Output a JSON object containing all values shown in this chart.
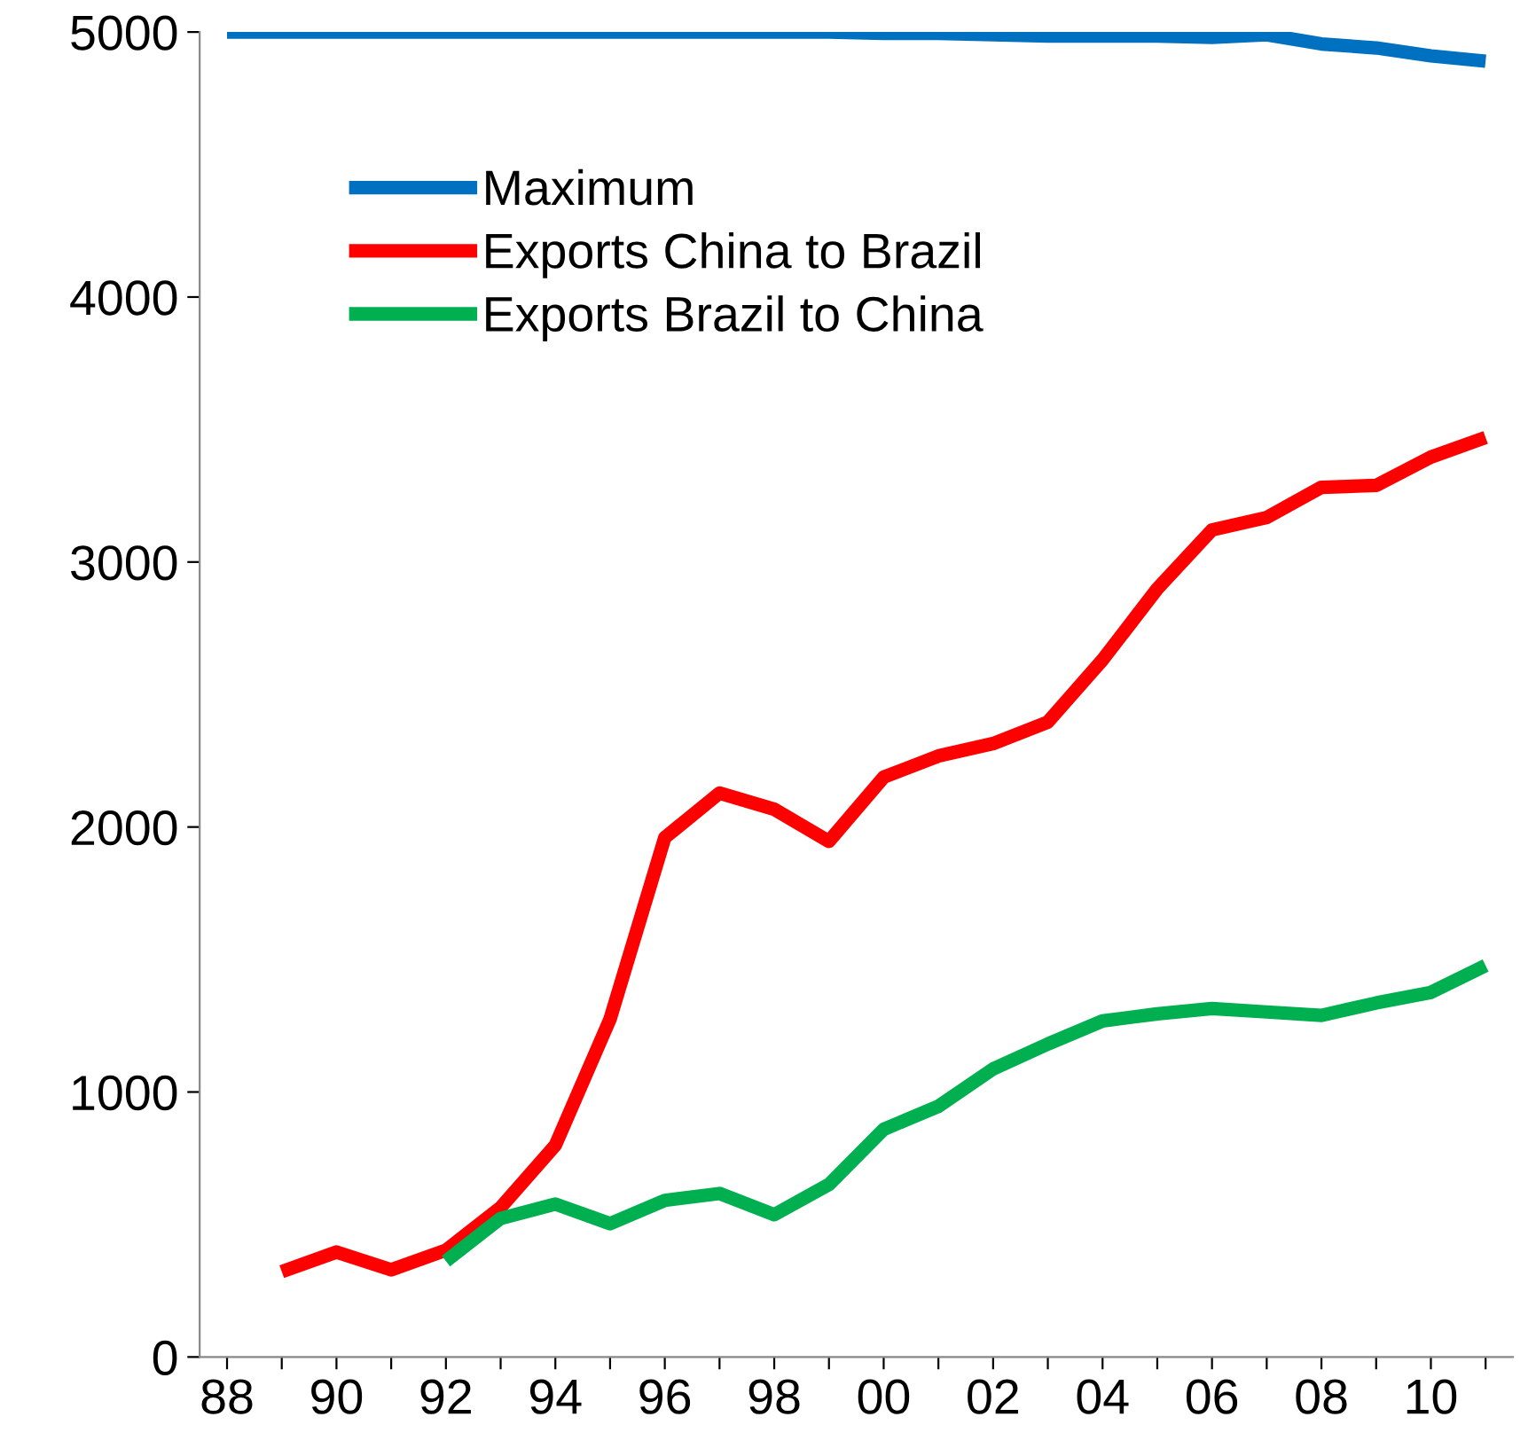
{
  "chart_data": {
    "type": "line",
    "categories": [
      "88",
      null,
      "90",
      null,
      "92",
      null,
      "94",
      null,
      "96",
      null,
      "98",
      null,
      "00",
      null,
      "02",
      null,
      "04",
      null,
      "06",
      null,
      "08",
      null,
      "10",
      null
    ],
    "series": [
      {
        "name": "Maximum",
        "color": "#0070c0",
        "values": [
          5000,
          5000,
          5000,
          5000,
          5000,
          5000,
          5000,
          5000,
          5000,
          5000,
          5000,
          5000,
          4995,
          4995,
          4990,
          4985,
          4985,
          4985,
          4980,
          4990,
          4955,
          4940,
          4910,
          4890
        ]
      },
      {
        "name": "Exports China to Brazil",
        "color": "#ff0000",
        "values": [
          null,
          322,
          396,
          329,
          403,
          564,
          799,
          1275,
          1960,
          2128,
          2067,
          1946,
          2188,
          2268,
          2315,
          2396,
          2631,
          2899,
          3121,
          3168,
          3282,
          3289,
          3396,
          3470
        ]
      },
      {
        "name": "Exports Brazil to China",
        "color": "#00b050",
        "values": [
          null,
          null,
          null,
          null,
          362,
          523,
          577,
          503,
          591,
          617,
          537,
          651,
          859,
          946,
          1087,
          1181,
          1268,
          1295,
          1315,
          1302,
          1289,
          1336,
          1376,
          1477
        ]
      }
    ],
    "ylim": [
      0,
      5000
    ],
    "yticks": [
      0,
      1000,
      2000,
      3000,
      4000,
      5000
    ],
    "grid": false,
    "legend": "top left",
    "marker": "none",
    "line_style": "solid"
  }
}
